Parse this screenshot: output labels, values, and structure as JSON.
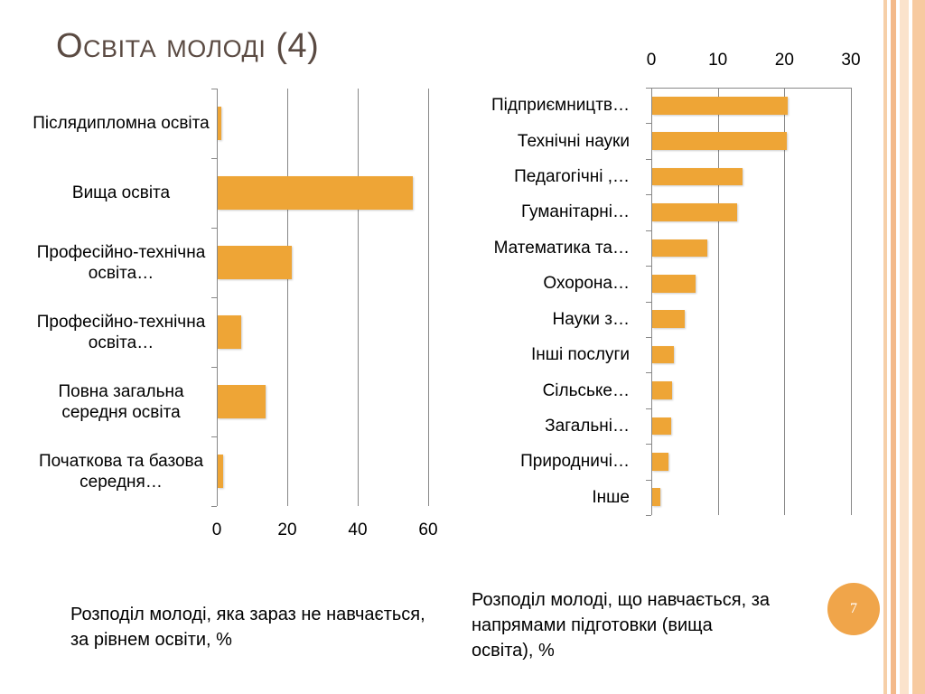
{
  "title": "Освіта молоді (4)",
  "slide_number": "7",
  "chart_data": [
    {
      "type": "bar",
      "orientation": "horizontal",
      "color": "#eea536",
      "categories": [
        "Післядипломна освіта",
        "Вища освіта",
        "Професійно-технічна освіта…",
        "Професійно-технічна освіта…",
        "Повна загальна середня освіта",
        "Початкова та базова середня…"
      ],
      "values": [
        1.0,
        55.4,
        21,
        6.7,
        13.6,
        1.5
      ],
      "xlim": [
        0,
        60
      ],
      "xticks": [
        0,
        20,
        40,
        60
      ],
      "grid": true,
      "axis_position": "bottom",
      "caption": "Розподіл молоді, яка зараз не навчається, за рівнем освіти, %"
    },
    {
      "type": "bar",
      "orientation": "horizontal",
      "color": "#eea536",
      "categories": [
        "Підприємництв…",
        "Технічні науки",
        "Педагогічні ,…",
        "Гуманітарні…",
        "Математика та…",
        "Охорона…",
        "Науки з…",
        "Інші послуги",
        "Сільське…",
        "Загальні…",
        "Природничі…",
        "Інше"
      ],
      "values": [
        20.3,
        20.2,
        13.6,
        12.8,
        8.3,
        6.5,
        4.9,
        3.3,
        3.0,
        2.8,
        2.4,
        1.2
      ],
      "xlim": [
        0,
        30
      ],
      "xticks": [
        0,
        10,
        20,
        30
      ],
      "grid": true,
      "axis_position": "top",
      "caption": "Розподіл молоді, що навчається, за напрямами підготовки (вища освіта), %"
    }
  ]
}
